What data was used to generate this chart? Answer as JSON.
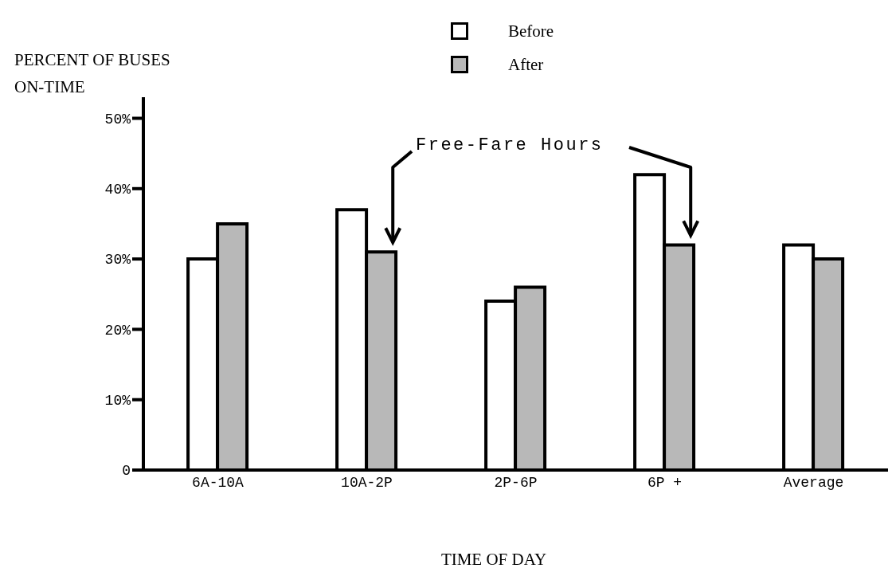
{
  "chart_data": {
    "type": "bar",
    "ylabel": "PERCENT OF BUSES ON-TIME",
    "xlabel": "TIME OF DAY",
    "categories": [
      "6A-10A",
      "10A-2P",
      "2P-6P",
      "6P +",
      "Average"
    ],
    "series": [
      {
        "name": "Before",
        "color": "#ffffff",
        "values": [
          30,
          37,
          24,
          42,
          32
        ]
      },
      {
        "name": "After",
        "color": "#b8b8b8",
        "values": [
          35,
          31,
          26,
          32,
          30
        ]
      }
    ],
    "ylim": [
      0,
      53
    ],
    "yticks": [
      0,
      {
        "value": 10,
        "label": "10%"
      },
      {
        "value": 20,
        "label": "20%"
      },
      {
        "value": 30,
        "label": "30%"
      },
      {
        "value": 40,
        "label": "40%"
      },
      {
        "value": 50,
        "label": "50%"
      }
    ],
    "legend": "top right",
    "annotations": [
      "Free-Fare Hours"
    ]
  }
}
